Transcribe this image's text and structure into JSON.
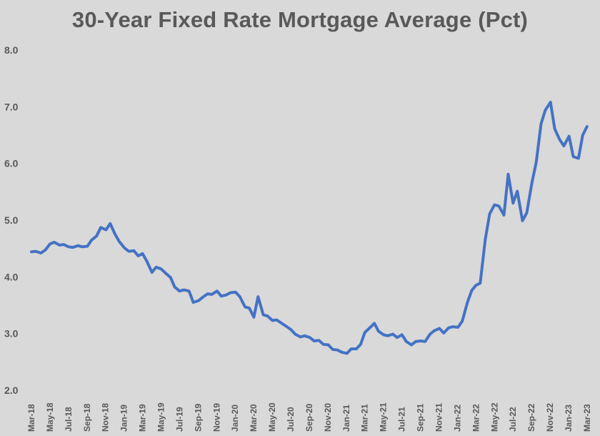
{
  "chart_data": {
    "type": "line",
    "title": "30-Year Fixed Rate Mortgage Average (Pct)",
    "xlabel": "",
    "ylabel": "",
    "ylim": [
      2.0,
      8.0
    ],
    "yticks": [
      "2.0",
      "3.0",
      "4.0",
      "5.0",
      "6.0",
      "7.0",
      "8.0"
    ],
    "x_tick_labels": [
      "Mar-18",
      "May-18",
      "Jul-18",
      "Sep-18",
      "Nov-18",
      "Jan-19",
      "Mar-19",
      "May-19",
      "Jul-19",
      "Sep-19",
      "Nov-19",
      "Jan-20",
      "Mar-20",
      "May-20",
      "Jul-20",
      "Sep-20",
      "Nov-20",
      "Jan-21",
      "Mar-21",
      "May-21",
      "Jul-21",
      "Sep-21",
      "Nov-21",
      "Jan-22",
      "Mar-22",
      "May-22",
      "Jul-22",
      "Sep-22",
      "Nov-22",
      "Jan-23",
      "Mar-23"
    ],
    "grid": false,
    "line_color": "#4472c4",
    "series": [
      {
        "x": [
          "2018-03-01",
          "2018-03-15",
          "2018-04-01",
          "2018-04-15",
          "2018-05-01",
          "2018-05-15",
          "2018-06-01",
          "2018-06-15",
          "2018-07-01",
          "2018-07-15",
          "2018-08-01",
          "2018-08-15",
          "2018-09-01",
          "2018-09-15",
          "2018-10-01",
          "2018-10-15",
          "2018-11-01",
          "2018-11-15",
          "2018-12-01",
          "2018-12-15",
          "2019-01-01",
          "2019-01-15",
          "2019-02-01",
          "2019-02-15",
          "2019-03-01",
          "2019-03-15",
          "2019-04-01",
          "2019-04-15",
          "2019-05-01",
          "2019-05-15",
          "2019-06-01",
          "2019-06-15",
          "2019-07-01",
          "2019-07-15",
          "2019-08-01",
          "2019-08-15",
          "2019-09-01",
          "2019-09-15",
          "2019-10-01",
          "2019-10-15",
          "2019-11-01",
          "2019-11-15",
          "2019-12-01",
          "2019-12-15",
          "2020-01-01",
          "2020-01-15",
          "2020-02-01",
          "2020-02-15",
          "2020-03-01",
          "2020-03-15",
          "2020-04-01",
          "2020-04-15",
          "2020-05-01",
          "2020-05-15",
          "2020-06-01",
          "2020-06-15",
          "2020-07-01",
          "2020-07-15",
          "2020-08-01",
          "2020-08-15",
          "2020-09-01",
          "2020-09-15",
          "2020-10-01",
          "2020-10-15",
          "2020-11-01",
          "2020-11-15",
          "2020-12-01",
          "2020-12-15",
          "2021-01-01",
          "2021-01-15",
          "2021-02-01",
          "2021-02-15",
          "2021-03-01",
          "2021-03-15",
          "2021-04-01",
          "2021-04-15",
          "2021-05-01",
          "2021-05-15",
          "2021-06-01",
          "2021-06-15",
          "2021-07-01",
          "2021-07-15",
          "2021-08-01",
          "2021-08-15",
          "2021-09-01",
          "2021-09-15",
          "2021-10-01",
          "2021-10-15",
          "2021-11-01",
          "2021-11-15",
          "2021-12-01",
          "2021-12-15",
          "2022-01-01",
          "2022-01-15",
          "2022-02-01",
          "2022-02-15",
          "2022-03-01",
          "2022-03-15",
          "2022-04-01",
          "2022-04-15",
          "2022-05-01",
          "2022-05-15",
          "2022-06-01",
          "2022-06-15",
          "2022-07-01",
          "2022-07-15",
          "2022-08-01",
          "2022-08-15",
          "2022-09-01",
          "2022-09-15",
          "2022-10-01",
          "2022-10-15",
          "2022-11-01",
          "2022-11-15",
          "2022-12-01",
          "2022-12-15",
          "2023-01-01",
          "2023-01-15",
          "2023-02-01",
          "2023-02-15",
          "2023-03-01"
        ],
        "values": [
          4.44,
          4.45,
          4.42,
          4.47,
          4.58,
          4.61,
          4.56,
          4.57,
          4.53,
          4.52,
          4.55,
          4.53,
          4.54,
          4.65,
          4.72,
          4.87,
          4.83,
          4.94,
          4.75,
          4.62,
          4.51,
          4.45,
          4.46,
          4.37,
          4.41,
          4.28,
          4.08,
          4.17,
          4.14,
          4.07,
          3.99,
          3.82,
          3.75,
          3.77,
          3.75,
          3.55,
          3.58,
          3.64,
          3.7,
          3.69,
          3.75,
          3.66,
          3.68,
          3.72,
          3.73,
          3.65,
          3.47,
          3.45,
          3.29,
          3.65,
          3.33,
          3.31,
          3.23,
          3.24,
          3.18,
          3.13,
          3.07,
          2.99,
          2.94,
          2.96,
          2.93,
          2.87,
          2.88,
          2.81,
          2.8,
          2.72,
          2.71,
          2.67,
          2.65,
          2.73,
          2.73,
          2.81,
          3.02,
          3.09,
          3.18,
          3.04,
          2.98,
          2.96,
          2.99,
          2.93,
          2.98,
          2.86,
          2.8,
          2.86,
          2.87,
          2.86,
          2.99,
          3.05,
          3.09,
          3.01,
          3.1,
          3.12,
          3.11,
          3.22,
          3.55,
          3.76,
          3.85,
          3.89,
          4.67,
          5.11,
          5.27,
          5.25,
          5.09,
          5.81,
          5.3,
          5.51,
          4.99,
          5.13,
          5.66,
          6.02,
          6.7,
          6.94,
          7.08,
          6.61,
          6.42,
          6.31,
          6.48,
          6.12,
          6.09,
          6.5,
          6.65
        ]
      }
    ]
  }
}
